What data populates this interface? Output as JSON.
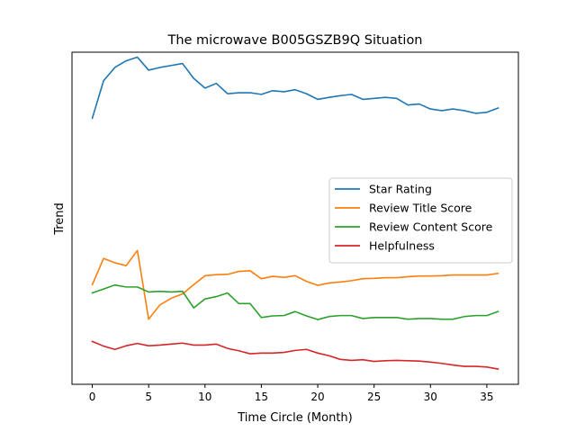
{
  "chart_data": {
    "type": "line",
    "title": "The microwave B005GSZB9Q Situation",
    "xlabel": "Time Circle (Month)",
    "ylabel": "Trend",
    "xlim": [
      -1.8,
      37.8
    ],
    "ylim": [
      0,
      100
    ],
    "xticks": [
      0,
      5,
      10,
      15,
      20,
      25,
      30,
      35
    ],
    "yticks_shown": false,
    "grid": false,
    "legend_position": "center-right",
    "x": [
      0,
      1,
      2,
      3,
      4,
      5,
      6,
      7,
      8,
      9,
      10,
      11,
      12,
      13,
      14,
      15,
      16,
      17,
      18,
      19,
      20,
      21,
      22,
      23,
      24,
      25,
      26,
      27,
      28,
      29,
      30,
      31,
      32,
      33,
      34,
      35,
      36
    ],
    "series": [
      {
        "name": "Star Rating",
        "color": "#1f77b4",
        "values": [
          80.1,
          91.4,
          95.4,
          97.4,
          98.5,
          94.6,
          95.4,
          96.0,
          96.6,
          92.1,
          89.2,
          90.6,
          87.5,
          87.8,
          87.8,
          87.3,
          88.4,
          88.1,
          88.7,
          87.5,
          85.8,
          86.4,
          86.9,
          87.3,
          85.8,
          86.1,
          86.4,
          86.1,
          84.1,
          84.4,
          82.9,
          82.4,
          82.9,
          82.4,
          81.6,
          81.9,
          83.2
        ]
      },
      {
        "name": "Review Title Score",
        "color": "#ff7f0e",
        "values": [
          30.0,
          37.9,
          36.6,
          35.7,
          40.3,
          19.6,
          23.9,
          25.9,
          27.2,
          30.0,
          32.7,
          33.0,
          33.1,
          34.0,
          34.2,
          31.8,
          32.5,
          32.2,
          32.7,
          31.0,
          29.8,
          30.5,
          30.8,
          31.2,
          31.8,
          31.9,
          32.1,
          32.1,
          32.4,
          32.6,
          32.6,
          32.7,
          32.9,
          32.9,
          32.9,
          32.9,
          33.4
        ]
      },
      {
        "name": "Review Content Score",
        "color": "#2ca02c",
        "values": [
          27.5,
          28.7,
          29.9,
          29.3,
          29.3,
          27.8,
          28.0,
          27.8,
          28.0,
          23.0,
          25.7,
          26.4,
          27.5,
          24.3,
          24.3,
          20.1,
          20.6,
          20.7,
          21.9,
          20.6,
          19.5,
          20.4,
          20.7,
          20.7,
          19.8,
          20.1,
          20.1,
          20.1,
          19.6,
          19.8,
          19.8,
          19.6,
          19.6,
          20.4,
          20.7,
          20.7,
          21.9
        ]
      },
      {
        "name": "Helpfulness",
        "color": "#d62728",
        "values": [
          12.9,
          11.5,
          10.5,
          11.6,
          12.3,
          11.6,
          11.8,
          12.1,
          12.4,
          11.8,
          11.8,
          12.1,
          10.8,
          10.1,
          9.2,
          9.4,
          9.4,
          9.6,
          10.2,
          10.5,
          9.4,
          8.6,
          7.5,
          7.2,
          7.4,
          6.9,
          7.1,
          7.2,
          7.1,
          7.0,
          6.7,
          6.3,
          5.8,
          5.4,
          5.4,
          5.2,
          4.6
        ]
      }
    ]
  }
}
